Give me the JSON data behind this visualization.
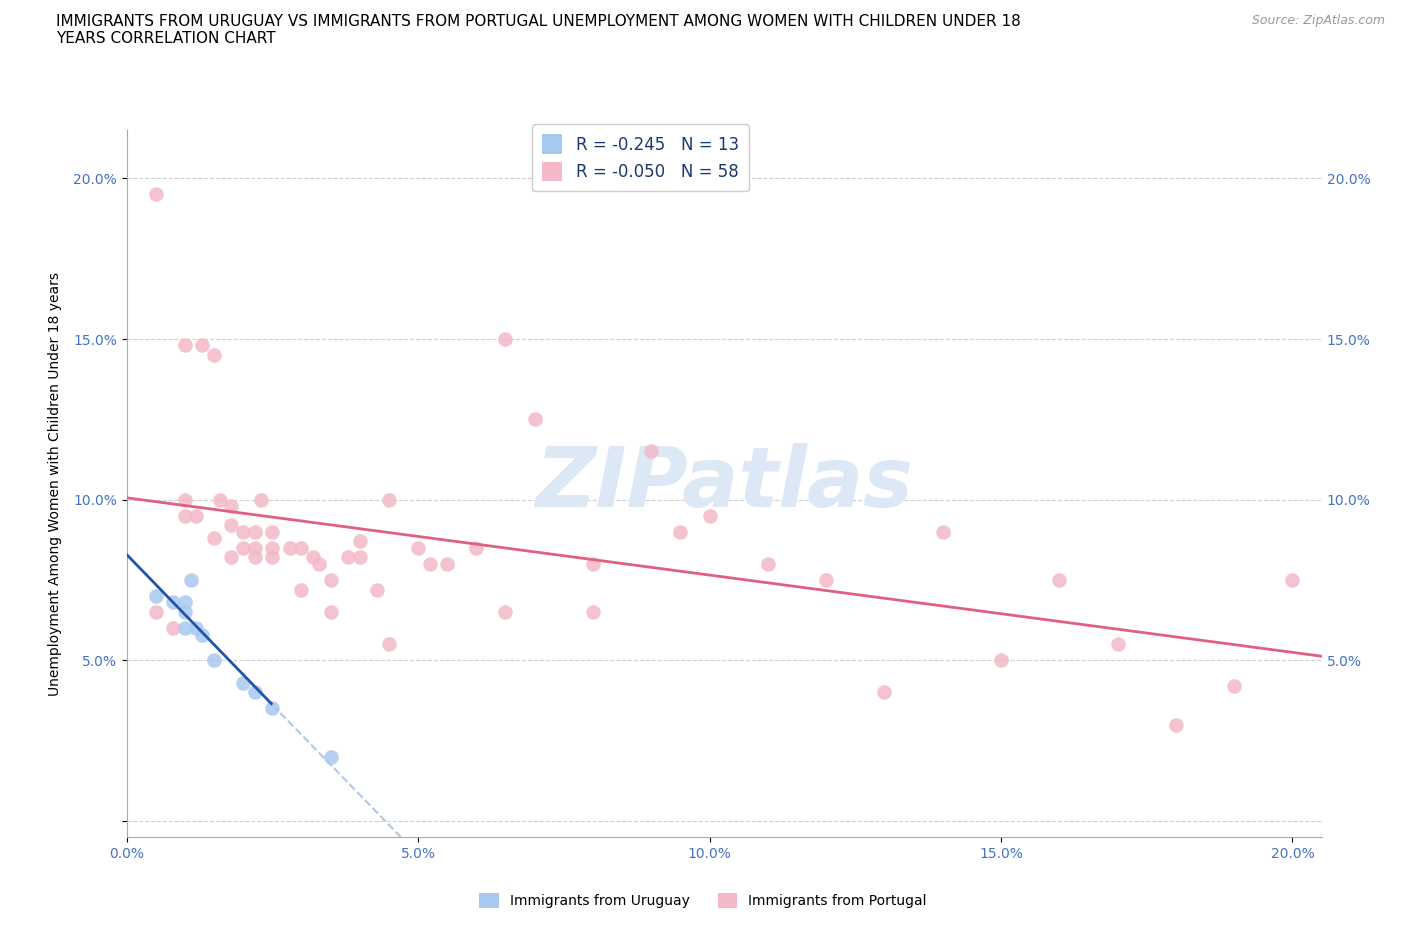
{
  "title": "IMMIGRANTS FROM URUGUAY VS IMMIGRANTS FROM PORTUGAL UNEMPLOYMENT AMONG WOMEN WITH CHILDREN UNDER 18\nYEARS CORRELATION CHART",
  "source": "Source: ZipAtlas.com",
  "ylabel": "Unemployment Among Women with Children Under 18 years",
  "xlim": [
    0.0,
    0.205
  ],
  "ylim": [
    -0.005,
    0.215
  ],
  "x_ticks": [
    0.0,
    0.05,
    0.1,
    0.15,
    0.2
  ],
  "x_tick_labels": [
    "0.0%",
    "5.0%",
    "10.0%",
    "15.0%",
    "20.0%"
  ],
  "y_ticks": [
    0.0,
    0.05,
    0.1,
    0.15,
    0.2
  ],
  "y_tick_labels": [
    "",
    "5.0%",
    "10.0%",
    "15.0%",
    "20.0%"
  ],
  "uruguay_color": "#a8c8f0",
  "portugal_color": "#f4b8c8",
  "uruguay_line_color": "#2255aa",
  "portugal_line_color": "#e06080",
  "dash_color": "#b0c8e8",
  "tick_label_color": "#4472c4",
  "watermark_color": "#dce8f5",
  "background_color": "#ffffff",
  "grid_color": "#d0d0d0",
  "uruguay_x": [
    0.005,
    0.008,
    0.01,
    0.01,
    0.01,
    0.011,
    0.012,
    0.013,
    0.015,
    0.02,
    0.022,
    0.025,
    0.035
  ],
  "uruguay_y": [
    0.07,
    0.068,
    0.068,
    0.065,
    0.06,
    0.075,
    0.06,
    0.058,
    0.05,
    0.043,
    0.04,
    0.035,
    0.02
  ],
  "portugal_x": [
    0.005,
    0.01,
    0.01,
    0.013,
    0.015,
    0.016,
    0.018,
    0.018,
    0.02,
    0.02,
    0.022,
    0.022,
    0.023,
    0.025,
    0.025,
    0.028,
    0.03,
    0.032,
    0.033,
    0.035,
    0.038,
    0.04,
    0.04,
    0.043,
    0.045,
    0.05,
    0.052,
    0.055,
    0.06,
    0.065,
    0.07,
    0.08,
    0.09,
    0.095,
    0.1,
    0.11,
    0.12,
    0.13,
    0.14,
    0.15,
    0.16,
    0.17,
    0.18,
    0.19,
    0.2,
    0.005,
    0.008,
    0.01,
    0.012,
    0.015,
    0.018,
    0.022,
    0.025,
    0.03,
    0.035,
    0.045,
    0.065,
    0.08
  ],
  "portugal_y": [
    0.195,
    0.148,
    0.095,
    0.148,
    0.145,
    0.1,
    0.098,
    0.092,
    0.09,
    0.085,
    0.09,
    0.085,
    0.1,
    0.09,
    0.085,
    0.085,
    0.085,
    0.082,
    0.08,
    0.075,
    0.082,
    0.087,
    0.082,
    0.072,
    0.1,
    0.085,
    0.08,
    0.08,
    0.085,
    0.15,
    0.125,
    0.08,
    0.115,
    0.09,
    0.095,
    0.08,
    0.075,
    0.04,
    0.09,
    0.05,
    0.075,
    0.055,
    0.03,
    0.042,
    0.075,
    0.065,
    0.06,
    0.1,
    0.095,
    0.088,
    0.082,
    0.082,
    0.082,
    0.072,
    0.065,
    0.055,
    0.065,
    0.065
  ],
  "legend_label_uy": "R = -0.245   N = 13",
  "legend_label_pt": "R = -0.050   N = 58",
  "bottom_legend_uy": "Immigrants from Uruguay",
  "bottom_legend_pt": "Immigrants from Portugal",
  "title_fontsize": 11,
  "tick_fontsize": 10,
  "ylabel_fontsize": 10,
  "legend_fontsize": 12,
  "source_fontsize": 9
}
